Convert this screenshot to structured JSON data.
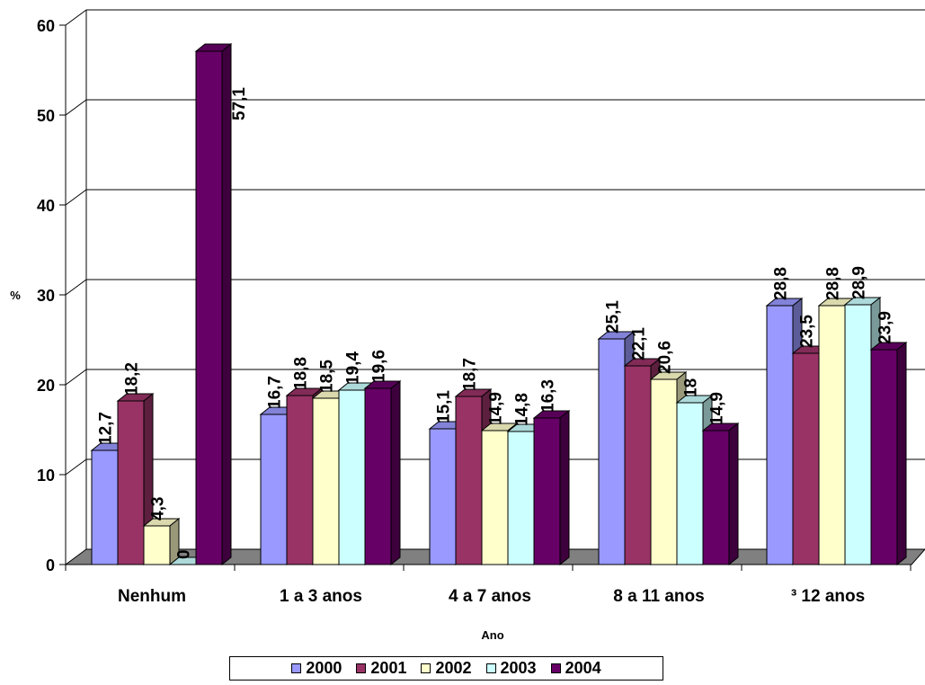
{
  "chart_data": {
    "type": "bar",
    "title": "",
    "xlabel": "Ano",
    "ylabel": "%",
    "ylim": [
      0,
      60
    ],
    "yticks": [
      "0",
      "10",
      "20",
      "30",
      "40",
      "50",
      "60"
    ],
    "categories": [
      "Nenhum",
      "1 a 3 anos",
      "4 a 7 anos",
      "8 a 11 anos",
      "³ 12 anos"
    ],
    "grid": true,
    "legend_position": "bottom",
    "series": [
      {
        "name": "2000",
        "color": "#9999FF",
        "values": [
          12.7,
          16.7,
          15.1,
          25.1,
          28.8
        ],
        "labels": [
          "12,7",
          "16,7",
          "15,1",
          "25,1",
          "28,8"
        ]
      },
      {
        "name": "2001",
        "color": "#993366",
        "values": [
          18.2,
          18.8,
          18.7,
          22.1,
          23.5
        ],
        "labels": [
          "18,2",
          "18,8",
          "18,7",
          "22,1",
          "23,5"
        ]
      },
      {
        "name": "2002",
        "color": "#FFFFCC",
        "values": [
          4.3,
          18.5,
          14.9,
          20.6,
          28.8
        ],
        "labels": [
          "4,3",
          "18,5",
          "14,9",
          "20,6",
          "28,8"
        ]
      },
      {
        "name": "2003",
        "color": "#CCFFFF",
        "values": [
          0,
          19.4,
          14.8,
          18,
          28.9
        ],
        "labels": [
          "0",
          "19,4",
          "14,8",
          "18",
          "28,9"
        ]
      },
      {
        "name": "2004",
        "color": "#660066",
        "values": [
          57.1,
          19.6,
          16.3,
          14.9,
          23.9
        ],
        "labels": [
          "57,1",
          "19,6",
          "16,3",
          "14,9",
          "23,9"
        ]
      }
    ]
  }
}
